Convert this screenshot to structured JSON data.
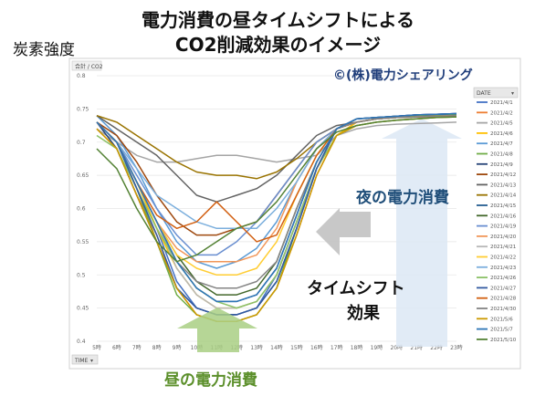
{
  "title_line1": "電力消費の昼タイムシフトによる",
  "title_line2": "CO2削減効果のイメージ",
  "ylabel": "炭素強度",
  "credit": "©(株)電力シェアリング",
  "annotations": {
    "night": "夜の電力消費",
    "shift_line1": "タイムシフト",
    "shift_line2": "効果",
    "day": "昼の電力消費"
  },
  "colors": {
    "night_arrow": "#dce8f5",
    "shift_arrow": "#c2c2c2",
    "day_arrow": "#a9cf84"
  },
  "chart_data": {
    "type": "line",
    "axis_title": "合計 / CO2",
    "x_field_button": "TIME",
    "legend_title": "DATE",
    "legend_placement": "right",
    "grid": true,
    "x": [
      "5時",
      "6時",
      "7時",
      "8時",
      "9時",
      "10時",
      "11時",
      "12時",
      "13時",
      "14時",
      "15時",
      "16時",
      "17時",
      "18時",
      "19時",
      "20時",
      "21時",
      "22時",
      "23時"
    ],
    "ylim": [
      0.4,
      0.8
    ],
    "yticks": [
      "0.4",
      "0.45",
      "0.5",
      "0.55",
      "0.6",
      "0.65",
      "0.7",
      "0.75",
      "0.8"
    ],
    "series": [
      {
        "name": "2021/4/1",
        "color": "#4472c4",
        "values": [
          0.73,
          0.7,
          0.63,
          0.57,
          0.49,
          0.45,
          0.44,
          0.44,
          0.45,
          0.5,
          0.58,
          0.66,
          0.72,
          0.735,
          0.737,
          0.739,
          0.741,
          0.742,
          0.743
        ]
      },
      {
        "name": "2021/4/2",
        "color": "#ed7d31",
        "values": [
          0.72,
          0.69,
          0.62,
          0.56,
          0.48,
          0.44,
          0.43,
          0.43,
          0.44,
          0.48,
          0.56,
          0.65,
          0.71,
          0.73,
          0.735,
          0.737,
          0.738,
          0.739,
          0.74
        ]
      },
      {
        "name": "2021/4/5",
        "color": "#a5a5a5",
        "values": [
          0.72,
          0.7,
          0.68,
          0.67,
          0.67,
          0.675,
          0.68,
          0.68,
          0.675,
          0.67,
          0.675,
          0.68,
          0.71,
          0.72,
          0.725,
          0.727,
          0.728,
          0.729,
          0.73
        ]
      },
      {
        "name": "2021/4/6",
        "color": "#ffc000",
        "values": [
          0.73,
          0.7,
          0.64,
          0.57,
          0.51,
          0.47,
          0.45,
          0.45,
          0.46,
          0.5,
          0.58,
          0.66,
          0.71,
          0.73,
          0.735,
          0.737,
          0.738,
          0.739,
          0.74
        ]
      },
      {
        "name": "2021/4/7",
        "color": "#5b9bd5",
        "values": [
          0.74,
          0.71,
          0.66,
          0.6,
          0.55,
          0.52,
          0.51,
          0.52,
          0.54,
          0.58,
          0.64,
          0.69,
          0.72,
          0.73,
          0.735,
          0.737,
          0.738,
          0.739,
          0.74
        ]
      },
      {
        "name": "2021/4/8",
        "color": "#70ad47",
        "values": [
          0.73,
          0.7,
          0.63,
          0.55,
          0.47,
          0.44,
          0.43,
          0.43,
          0.44,
          0.48,
          0.57,
          0.66,
          0.72,
          0.735,
          0.737,
          0.739,
          0.74,
          0.741,
          0.742
        ]
      },
      {
        "name": "2021/4/9",
        "color": "#264478",
        "values": [
          0.73,
          0.69,
          0.62,
          0.55,
          0.48,
          0.45,
          0.44,
          0.44,
          0.45,
          0.49,
          0.57,
          0.66,
          0.72,
          0.735,
          0.737,
          0.739,
          0.741,
          0.742,
          0.743
        ]
      },
      {
        "name": "2021/4/12",
        "color": "#9e480e",
        "values": [
          0.73,
          0.71,
          0.67,
          0.62,
          0.58,
          0.56,
          0.56,
          0.57,
          0.58,
          0.62,
          0.66,
          0.7,
          0.72,
          0.73,
          0.735,
          0.737,
          0.738,
          0.739,
          0.74
        ]
      },
      {
        "name": "2021/4/13",
        "color": "#636363",
        "values": [
          0.74,
          0.72,
          0.7,
          0.68,
          0.65,
          0.62,
          0.61,
          0.62,
          0.63,
          0.65,
          0.68,
          0.71,
          0.725,
          0.73,
          0.735,
          0.737,
          0.738,
          0.739,
          0.74
        ]
      },
      {
        "name": "2021/4/14",
        "color": "#997300",
        "values": [
          0.74,
          0.73,
          0.71,
          0.69,
          0.67,
          0.655,
          0.65,
          0.65,
          0.645,
          0.655,
          0.675,
          0.7,
          0.72,
          0.73,
          0.735,
          0.737,
          0.738,
          0.739,
          0.74
        ]
      },
      {
        "name": "2021/4/15",
        "color": "#255e91",
        "values": [
          0.73,
          0.7,
          0.64,
          0.58,
          0.52,
          0.48,
          0.46,
          0.46,
          0.47,
          0.51,
          0.59,
          0.67,
          0.72,
          0.73,
          0.735,
          0.737,
          0.738,
          0.739,
          0.74
        ]
      },
      {
        "name": "2021/4/16",
        "color": "#43682b",
        "values": [
          0.73,
          0.7,
          0.64,
          0.58,
          0.53,
          0.49,
          0.47,
          0.47,
          0.48,
          0.52,
          0.6,
          0.67,
          0.72,
          0.73,
          0.735,
          0.737,
          0.738,
          0.739,
          0.74
        ]
      },
      {
        "name": "2021/4/19",
        "color": "#698ed0",
        "values": [
          0.73,
          0.7,
          0.65,
          0.6,
          0.56,
          0.53,
          0.53,
          0.55,
          0.58,
          0.62,
          0.66,
          0.7,
          0.72,
          0.73,
          0.735,
          0.737,
          0.738,
          0.739,
          0.74
        ]
      },
      {
        "name": "2021/4/20",
        "color": "#f1975a",
        "values": [
          0.73,
          0.7,
          0.64,
          0.58,
          0.54,
          0.52,
          0.52,
          0.52,
          0.53,
          0.57,
          0.64,
          0.69,
          0.72,
          0.73,
          0.735,
          0.737,
          0.738,
          0.739,
          0.74
        ]
      },
      {
        "name": "2021/4/21",
        "color": "#b7b7b7",
        "values": [
          0.73,
          0.7,
          0.64,
          0.58,
          0.51,
          0.47,
          0.45,
          0.45,
          0.46,
          0.5,
          0.58,
          0.66,
          0.72,
          0.73,
          0.735,
          0.737,
          0.738,
          0.739,
          0.74
        ]
      },
      {
        "name": "2021/4/22",
        "color": "#ffcd33",
        "values": [
          0.73,
          0.7,
          0.64,
          0.58,
          0.53,
          0.51,
          0.5,
          0.5,
          0.51,
          0.55,
          0.62,
          0.68,
          0.72,
          0.73,
          0.735,
          0.737,
          0.738,
          0.739,
          0.74
        ]
      },
      {
        "name": "2021/4/23",
        "color": "#7cafdd",
        "values": [
          0.73,
          0.7,
          0.66,
          0.62,
          0.6,
          0.58,
          0.57,
          0.57,
          0.57,
          0.6,
          0.64,
          0.69,
          0.72,
          0.73,
          0.735,
          0.737,
          0.738,
          0.739,
          0.74
        ]
      },
      {
        "name": "2021/4/26",
        "color": "#8cc168",
        "values": [
          0.71,
          0.69,
          0.63,
          0.57,
          0.52,
          0.48,
          0.46,
          0.45,
          0.46,
          0.5,
          0.58,
          0.66,
          0.71,
          0.725,
          0.73,
          0.733,
          0.735,
          0.737,
          0.738
        ]
      },
      {
        "name": "2021/4/27",
        "color": "#335aa1",
        "values": [
          0.73,
          0.7,
          0.63,
          0.56,
          0.48,
          0.45,
          0.44,
          0.44,
          0.45,
          0.49,
          0.57,
          0.66,
          0.72,
          0.735,
          0.737,
          0.739,
          0.741,
          0.742,
          0.743
        ]
      },
      {
        "name": "2021/4/28",
        "color": "#d26012",
        "values": [
          0.73,
          0.7,
          0.64,
          0.59,
          0.57,
          0.58,
          0.61,
          0.58,
          0.55,
          0.56,
          0.62,
          0.68,
          0.72,
          0.73,
          0.735,
          0.737,
          0.738,
          0.739,
          0.74
        ]
      },
      {
        "name": "2021/4/30",
        "color": "#848484",
        "values": [
          0.73,
          0.7,
          0.64,
          0.58,
          0.52,
          0.49,
          0.48,
          0.48,
          0.49,
          0.52,
          0.6,
          0.67,
          0.72,
          0.73,
          0.735,
          0.737,
          0.738,
          0.739,
          0.74
        ]
      },
      {
        "name": "2021/5/6",
        "color": "#cc9a00",
        "values": [
          0.72,
          0.69,
          0.62,
          0.55,
          0.48,
          0.44,
          0.43,
          0.43,
          0.44,
          0.48,
          0.56,
          0.65,
          0.71,
          0.725,
          0.73,
          0.733,
          0.735,
          0.737,
          0.738
        ]
      },
      {
        "name": "2021/5/7",
        "color": "#2e75b6",
        "values": [
          0.73,
          0.7,
          0.64,
          0.58,
          0.52,
          0.48,
          0.46,
          0.46,
          0.47,
          0.51,
          0.59,
          0.67,
          0.72,
          0.735,
          0.737,
          0.739,
          0.741,
          0.742,
          0.743
        ]
      },
      {
        "name": "2021/5/10",
        "color": "#548235",
        "values": [
          0.69,
          0.66,
          0.6,
          0.55,
          0.52,
          0.53,
          0.55,
          0.57,
          0.58,
          0.61,
          0.65,
          0.69,
          0.715,
          0.725,
          0.73,
          0.733,
          0.735,
          0.737,
          0.738
        ]
      }
    ]
  }
}
